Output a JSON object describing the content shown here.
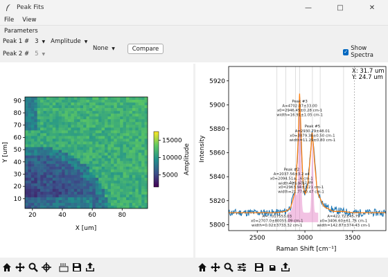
{
  "window": {
    "title": "Peak Fits"
  },
  "menu": [
    "File",
    "View"
  ],
  "params": {
    "title": "Parameters",
    "peak1_label": "Peak 1 #",
    "peak1_value": "3",
    "amplitude_value": "Amplitude",
    "peak2_label": "Peak 2 #",
    "peak2_value": "5",
    "none_value": "None",
    "compare_label": "Compare",
    "show_spectra_label": "Show Spectra",
    "show_spectra_checked": true
  },
  "map": {
    "x_label": "X [um]",
    "y_label": "Y [um]",
    "x_ticks": [
      "20",
      "40",
      "60",
      "80"
    ],
    "y_ticks": [
      "10",
      "20",
      "30",
      "40",
      "50",
      "60",
      "70",
      "80",
      "90"
    ],
    "colorbar_label": "Amplitude",
    "colorbar_ticks": [
      "5000",
      "10000",
      "15000"
    ],
    "colormap": [
      "#440154",
      "#3b528b",
      "#21918c",
      "#5ec962",
      "#fde725"
    ]
  },
  "chart_data": {
    "type": "line",
    "xlabel": "Raman Shift [cm⁻¹]",
    "ylabel": "Intensity",
    "xlim": [
      2200,
      3850
    ],
    "ylim": [
      5795,
      5932
    ],
    "x_ticks": [
      "2500",
      "3000",
      "3500"
    ],
    "y_ticks": [
      "5800",
      "5820",
      "5840",
      "5860",
      "5880",
      "5900",
      "5920"
    ],
    "cursor_readout": {
      "x": "X:  31.7 um",
      "y": "Y:  24.7 um"
    },
    "series": [
      {
        "color": "#1f77b4",
        "x": [
          2200,
          2400,
          2600,
          2700,
          2800,
          2850,
          2900,
          2930,
          2946,
          2960,
          2980,
          3000,
          3030,
          3060,
          3078,
          3095,
          3130,
          3200,
          3300,
          3400,
          3500,
          3650,
          3850
        ],
        "y": [
          5810,
          5810,
          5810,
          5810,
          5811,
          5815,
          5830,
          5868,
          5912,
          5868,
          5836,
          5826,
          5834,
          5862,
          5880,
          5860,
          5828,
          5816,
          5812,
          5811,
          5810,
          5810,
          5810
        ]
      },
      {
        "color": "#ff7f0e",
        "x": [
          2200,
          2400,
          2600,
          2700,
          2800,
          2850,
          2900,
          2930,
          2946,
          2960,
          2980,
          3000,
          3030,
          3060,
          3078,
          3095,
          3130,
          3200,
          3300,
          3400,
          3500,
          3650,
          3850
        ],
        "y": [
          5810,
          5810,
          5810,
          5810,
          5811,
          5814,
          5828,
          5870,
          5915,
          5872,
          5835,
          5825,
          5832,
          5860,
          5879,
          5858,
          5827,
          5815,
          5811,
          5811,
          5810,
          5810,
          5810
        ]
      }
    ],
    "peak_lines_x": [
      2707,
      2800,
      2900,
      2946,
      3079,
      3160,
      3406
    ],
    "annotations": [
      {
        "x": 2946,
        "y": 5902,
        "lines": [
          "Peak #3",
          "A=4702.07±33.00",
          "x0=2946.45±0.28 cm-1",
          "width=16.91±1.05 cm-1"
        ]
      },
      {
        "x": 3079,
        "y": 5881,
        "lines": [
          "Peak #5",
          "A=2930.79±48.01",
          "x0=3079.38±0.50 cm-1",
          "width=11.29±0.80 cm-1"
        ]
      },
      {
        "x": 2860,
        "y": 5845,
        "lines": [
          "Peak #2",
          "A=2037.56±3.2 e4",
          "x0=2094.51±...6 cm-1",
          "width=23.9 ..."
        ]
      },
      {
        "x": 2960,
        "y": 5834,
        "lines": [
          "A=... 2E2.89",
          "x0=2963.94±3.21 cm-1",
          "width=21.77±0.47 cm-1"
        ]
      },
      {
        "x": 2707,
        "y": 5806,
        "lines": [
          "A=...017553.03",
          "x0=2707.0±80055.09 cm-1",
          "width=0.02±3733.32 cm-1"
        ]
      },
      {
        "x": 3406,
        "y": 5806,
        "lines": [
          "A=422.72±45.79",
          "x0=3406.60±61.76 cm-1",
          "width=142.87±374.43 cm-1"
        ]
      }
    ]
  },
  "toolbar_icons": [
    "home-icon",
    "pan-icon",
    "zoom-icon",
    "configure-icon",
    "save-icon",
    "export-icon"
  ]
}
